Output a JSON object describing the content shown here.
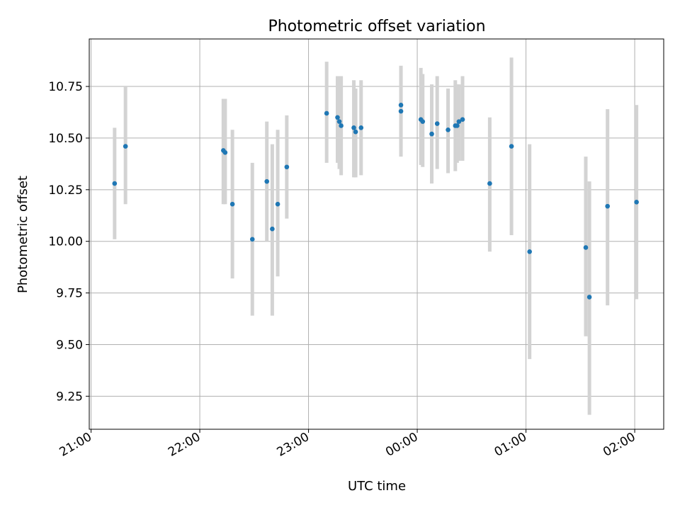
{
  "chart_data": {
    "type": "scatter",
    "title": "Photometric offset variation",
    "xlabel": "UTC time",
    "ylabel": "Photometric offset",
    "grid": true,
    "xlim": [
      "20:59",
      "02:16"
    ],
    "ylim": [
      9.09,
      10.98
    ],
    "xticks": [
      "21:00",
      "22:00",
      "23:00",
      "00:00",
      "01:00",
      "02:00"
    ],
    "yticks": [
      9.25,
      9.5,
      9.75,
      10.0,
      10.25,
      10.5,
      10.75
    ],
    "colors": {
      "point": "#1f77b4",
      "errorbar": "#d3d3d3",
      "grid": "#b0b0b0"
    },
    "points": [
      {
        "x": "21:13",
        "y": 10.28,
        "lo": 10.01,
        "hi": 10.55
      },
      {
        "x": "21:19",
        "y": 10.46,
        "lo": 10.18,
        "hi": 10.75
      },
      {
        "x": "22:13",
        "y": 10.44,
        "lo": 10.18,
        "hi": 10.69
      },
      {
        "x": "22:14",
        "y": 10.43,
        "lo": 10.18,
        "hi": 10.69
      },
      {
        "x": "22:18",
        "y": 10.18,
        "lo": 9.82,
        "hi": 10.54
      },
      {
        "x": "22:29",
        "y": 10.01,
        "lo": 9.64,
        "hi": 10.38
      },
      {
        "x": "22:37",
        "y": 10.29,
        "lo": 10.0,
        "hi": 10.58
      },
      {
        "x": "22:40",
        "y": 10.06,
        "lo": 9.64,
        "hi": 10.47
      },
      {
        "x": "22:43",
        "y": 10.18,
        "lo": 9.83,
        "hi": 10.54
      },
      {
        "x": "22:48",
        "y": 10.36,
        "lo": 10.11,
        "hi": 10.61
      },
      {
        "x": "23:10",
        "y": 10.62,
        "lo": 10.38,
        "hi": 10.87
      },
      {
        "x": "23:16",
        "y": 10.6,
        "lo": 10.38,
        "hi": 10.8
      },
      {
        "x": "23:17",
        "y": 10.58,
        "lo": 10.35,
        "hi": 10.8
      },
      {
        "x": "23:18",
        "y": 10.56,
        "lo": 10.32,
        "hi": 10.8
      },
      {
        "x": "23:25",
        "y": 10.55,
        "lo": 10.31,
        "hi": 10.78
      },
      {
        "x": "23:26",
        "y": 10.53,
        "lo": 10.31,
        "hi": 10.74
      },
      {
        "x": "23:29",
        "y": 10.55,
        "lo": 10.32,
        "hi": 10.78
      },
      {
        "x": "23:51",
        "y": 10.66,
        "lo": 10.45,
        "hi": 10.85
      },
      {
        "x": "23:51",
        "y": 10.63,
        "lo": 10.41,
        "hi": 10.85
      },
      {
        "x": "00:02",
        "y": 10.59,
        "lo": 10.37,
        "hi": 10.84
      },
      {
        "x": "00:03",
        "y": 10.58,
        "lo": 10.36,
        "hi": 10.81
      },
      {
        "x": "00:08",
        "y": 10.52,
        "lo": 10.28,
        "hi": 10.76
      },
      {
        "x": "00:11",
        "y": 10.57,
        "lo": 10.35,
        "hi": 10.8
      },
      {
        "x": "00:17",
        "y": 10.54,
        "lo": 10.33,
        "hi": 10.74
      },
      {
        "x": "00:21",
        "y": 10.56,
        "lo": 10.34,
        "hi": 10.78
      },
      {
        "x": "00:22",
        "y": 10.56,
        "lo": 10.38,
        "hi": 10.76
      },
      {
        "x": "00:23",
        "y": 10.58,
        "lo": 10.39,
        "hi": 10.76
      },
      {
        "x": "00:25",
        "y": 10.59,
        "lo": 10.39,
        "hi": 10.8
      },
      {
        "x": "00:40",
        "y": 10.28,
        "lo": 9.95,
        "hi": 10.6
      },
      {
        "x": "00:52",
        "y": 10.46,
        "lo": 10.03,
        "hi": 10.89
      },
      {
        "x": "01:02",
        "y": 9.95,
        "lo": 9.43,
        "hi": 10.47
      },
      {
        "x": "01:33",
        "y": 9.97,
        "lo": 9.54,
        "hi": 10.41
      },
      {
        "x": "01:35",
        "y": 9.73,
        "lo": 9.16,
        "hi": 10.29
      },
      {
        "x": "01:45",
        "y": 10.17,
        "lo": 9.69,
        "hi": 10.64
      },
      {
        "x": "02:01",
        "y": 10.19,
        "lo": 9.72,
        "hi": 10.66
      }
    ]
  }
}
